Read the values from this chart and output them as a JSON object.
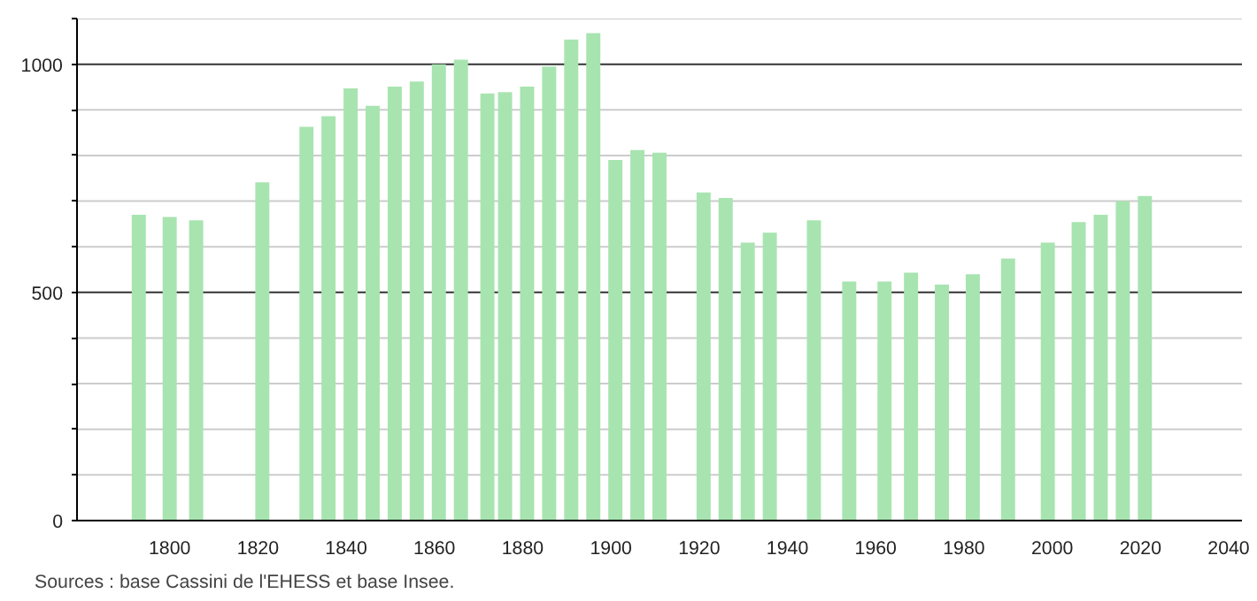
{
  "chart_data": {
    "type": "bar",
    "x": [
      1793,
      1800,
      1806,
      1821,
      1831,
      1836,
      1841,
      1846,
      1851,
      1856,
      1861,
      1866,
      1872,
      1876,
      1881,
      1886,
      1891,
      1896,
      1901,
      1906,
      1911,
      1921,
      1926,
      1931,
      1936,
      1946,
      1954,
      1962,
      1968,
      1975,
      1982,
      1990,
      1999,
      2006,
      2011,
      2016,
      2021
    ],
    "values": [
      670,
      665,
      658,
      741,
      863,
      886,
      947,
      909,
      951,
      962,
      1000,
      1010,
      936,
      939,
      951,
      995,
      1054,
      1068,
      790,
      812,
      806,
      719,
      707,
      609,
      631,
      658,
      524,
      524,
      543,
      517,
      540,
      574,
      609,
      654,
      670,
      700,
      711
    ],
    "color": "#a8e4b0",
    "xlim": [
      1779,
      2043
    ],
    "xticks": [
      1800,
      1820,
      1840,
      1860,
      1880,
      1900,
      1920,
      1940,
      1960,
      1980,
      2000,
      2020,
      2040
    ],
    "ylim": [
      0,
      1100
    ],
    "yticks": [
      0,
      {
        "value": 100,
        "label": null
      },
      {
        "value": 200,
        "label": null
      },
      {
        "value": 300,
        "label": null
      },
      {
        "value": 400,
        "label": null
      },
      500,
      {
        "value": 600,
        "label": null
      },
      {
        "value": 700,
        "label": null
      },
      {
        "value": 800,
        "label": null
      },
      {
        "value": 900,
        "label": null
      },
      1000,
      {
        "value": 1100,
        "label": null
      }
    ],
    "grid": "y",
    "annotations": [
      "Sources : base Cassini de l'EHESS et base Insee."
    ]
  }
}
